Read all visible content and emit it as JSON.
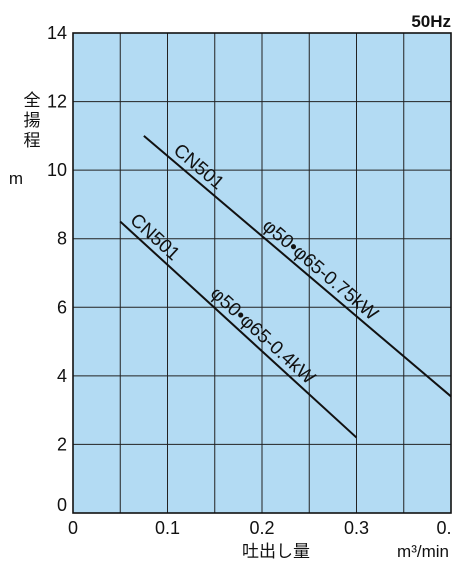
{
  "chart_data": {
    "type": "line",
    "frequency_label": "50Hz",
    "ylabel_chars": [
      "全",
      "揚",
      "程"
    ],
    "yunit": "m",
    "xlabel": "吐出し量",
    "xunit": "m³/min",
    "x_ticks": [
      "0",
      "0.1",
      "0.2",
      "0.3",
      "0."
    ],
    "y_ticks": [
      "0",
      "2",
      "4",
      "6",
      "8",
      "10",
      "12",
      "14"
    ],
    "xlim": [
      0,
      0.4
    ],
    "ylim": [
      0,
      14
    ],
    "grid": true,
    "plot_background": "#b3dbf3",
    "line_color": "#111111",
    "series": [
      {
        "name": "CN501 φ50･φ65-0.75kW",
        "label_lines": [
          "CN501",
          "φ50•φ65-0.75kW"
        ],
        "x": [
          0.075,
          0.4
        ],
        "y": [
          11.0,
          3.4
        ]
      },
      {
        "name": "CN501 φ50･φ65-0.4kW",
        "label_lines": [
          "CN501",
          "φ50•φ65-0.4kW"
        ],
        "x": [
          0.05,
          0.3
        ],
        "y": [
          8.5,
          2.2
        ]
      }
    ]
  }
}
